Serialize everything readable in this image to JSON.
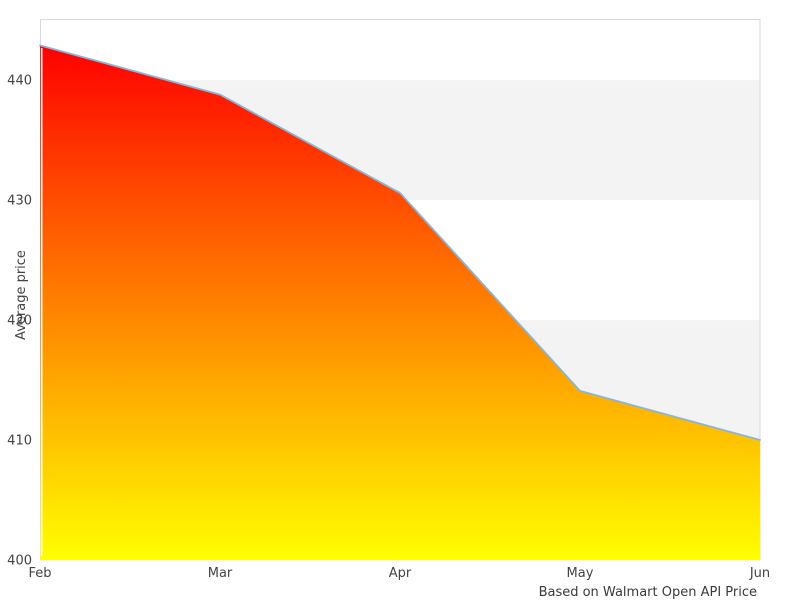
{
  "chart_data": {
    "type": "area",
    "title": "",
    "categories": [
      "Feb",
      "Mar",
      "Apr",
      "May",
      "Jun"
    ],
    "values": [
      442.9,
      438.8,
      430.6,
      414.1,
      410.0
    ],
    "xlabel": "",
    "ylabel": "Average price",
    "caption": "Based on Walmart Open API Price",
    "ylim": [
      400,
      445.1
    ],
    "yticks": [
      400,
      410,
      420,
      430,
      440
    ],
    "grid_bands": [
      [
        410,
        420
      ],
      [
        430,
        440
      ]
    ],
    "legend": "none",
    "grid": "alternating-horizontal-bands",
    "colors": {
      "gradient_top": "#ff0000",
      "gradient_mid": "#ff8000",
      "gradient_bottom": "#ffff00",
      "line": "#89b5d8",
      "band": "#f3f3f3",
      "plot_border": "#d9d9d9",
      "tick_text": "#444444",
      "caption_text": "#3a3a3a",
      "background": "#ffffff"
    }
  }
}
